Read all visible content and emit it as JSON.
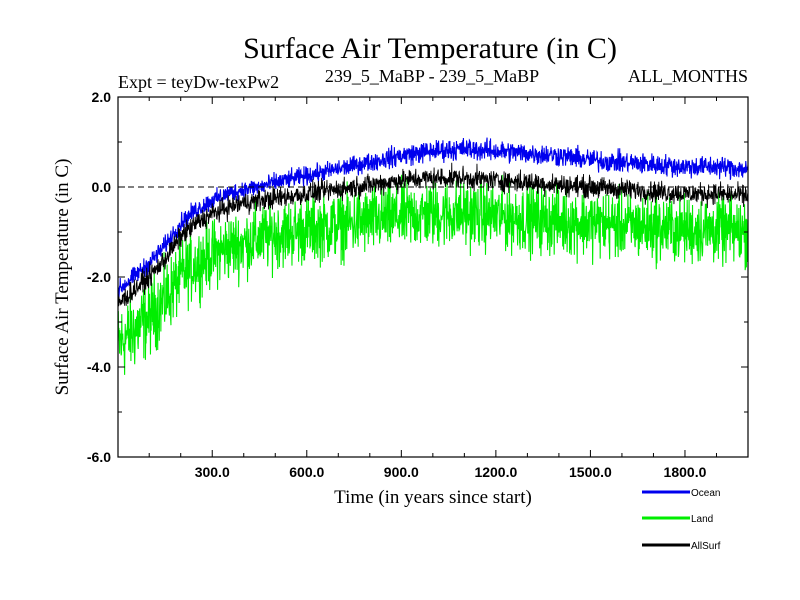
{
  "chart_data": {
    "type": "line",
    "title": "Surface Air Temperature (in C)",
    "subtitle_left": "Expt = teyDw-texPw2",
    "subtitle_center": "239_5_MaBP - 239_5_MaBP",
    "subtitle_right": "ALL_MONTHS",
    "xlabel": "Time (in years since start)",
    "ylabel": "Surface Air Temperature (in C)",
    "xlim": [
      1,
      2000
    ],
    "ylim": [
      -6.0,
      2.0
    ],
    "xticks": [
      300,
      600,
      900,
      1200,
      1500,
      1800
    ],
    "xtick_labels": [
      "300.0",
      "600.0",
      "900.0",
      "1200.0",
      "1500.0",
      "1800.0"
    ],
    "yticks": [
      -6,
      -4,
      -2,
      0,
      2
    ],
    "ytick_labels": [
      "-6.0",
      "-4.0",
      "-2.0",
      "0.0",
      "2.0"
    ],
    "reference_line": {
      "y": 0.0,
      "style": "dashed"
    },
    "series": [
      {
        "name": "Ocean",
        "color": "#0000ee",
        "x": [
          1,
          50,
          100,
          150,
          200,
          250,
          300,
          350,
          400,
          450,
          500,
          600,
          700,
          800,
          900,
          1000,
          1100,
          1200,
          1300,
          1400,
          1500,
          1600,
          1700,
          1800,
          1900,
          2000
        ],
        "mean": [
          -2.3,
          -2.0,
          -1.7,
          -1.3,
          -0.8,
          -0.5,
          -0.3,
          -0.15,
          -0.05,
          0.0,
          0.1,
          0.25,
          0.4,
          0.55,
          0.7,
          0.8,
          0.85,
          0.8,
          0.75,
          0.7,
          0.6,
          0.55,
          0.5,
          0.45,
          0.45,
          0.4
        ],
        "spread": [
          0.3,
          0.3,
          0.3,
          0.3,
          0.3,
          0.3,
          0.3,
          0.3,
          0.3,
          0.3,
          0.3,
          0.3,
          0.3,
          0.3,
          0.35,
          0.35,
          0.35,
          0.35,
          0.35,
          0.35,
          0.35,
          0.35,
          0.35,
          0.35,
          0.35,
          0.35
        ]
      },
      {
        "name": "Land",
        "color": "#00ee00",
        "x": [
          1,
          50,
          100,
          150,
          200,
          250,
          300,
          350,
          400,
          450,
          500,
          600,
          700,
          800,
          900,
          1000,
          1100,
          1200,
          1300,
          1400,
          1500,
          1600,
          1700,
          1800,
          1900,
          2000
        ],
        "mean": [
          -3.5,
          -3.2,
          -2.9,
          -2.5,
          -2.0,
          -1.7,
          -1.5,
          -1.35,
          -1.25,
          -1.15,
          -1.05,
          -0.95,
          -0.85,
          -0.75,
          -0.65,
          -0.6,
          -0.6,
          -0.65,
          -0.7,
          -0.75,
          -0.8,
          -0.85,
          -0.9,
          -0.95,
          -0.95,
          -1.0
        ],
        "spread": [
          1.3,
          1.3,
          1.25,
          1.2,
          1.15,
          1.1,
          1.1,
          1.1,
          1.1,
          1.1,
          1.1,
          1.1,
          1.1,
          1.1,
          1.1,
          1.1,
          1.1,
          1.1,
          1.1,
          1.1,
          1.1,
          1.1,
          1.1,
          1.1,
          1.1,
          1.1
        ]
      },
      {
        "name": "AllSurf",
        "color": "#000000",
        "x": [
          1,
          50,
          100,
          150,
          200,
          250,
          300,
          350,
          400,
          450,
          500,
          600,
          700,
          800,
          900,
          1000,
          1100,
          1200,
          1300,
          1400,
          1500,
          1600,
          1700,
          1800,
          1900,
          2000
        ],
        "mean": [
          -2.6,
          -2.3,
          -2.0,
          -1.6,
          -1.1,
          -0.8,
          -0.6,
          -0.45,
          -0.35,
          -0.3,
          -0.25,
          -0.15,
          -0.05,
          0.05,
          0.15,
          0.2,
          0.2,
          0.15,
          0.1,
          0.05,
          0.0,
          -0.05,
          -0.1,
          -0.15,
          -0.15,
          -0.2
        ],
        "spread": [
          0.35,
          0.35,
          0.35,
          0.35,
          0.35,
          0.35,
          0.35,
          0.35,
          0.35,
          0.35,
          0.35,
          0.35,
          0.35,
          0.35,
          0.35,
          0.35,
          0.35,
          0.35,
          0.35,
          0.35,
          0.35,
          0.35,
          0.35,
          0.35,
          0.35,
          0.35
        ]
      }
    ],
    "legend": [
      "Ocean",
      "Land",
      "AllSurf"
    ],
    "legend_position": "bottom-right"
  }
}
